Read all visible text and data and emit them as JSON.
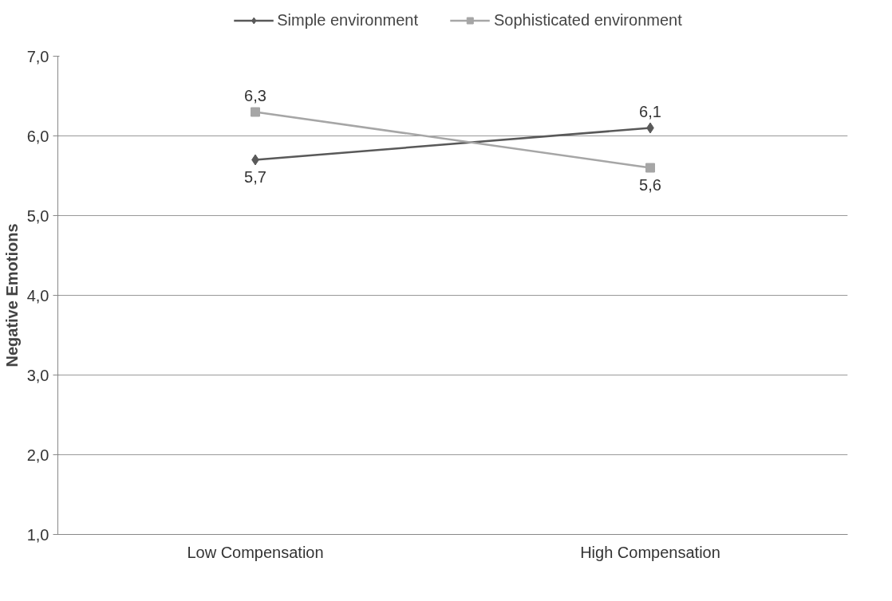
{
  "chart_data": {
    "type": "line",
    "ylabel": "Negative Emotions",
    "categories": [
      "Low Compensation",
      "High Compensation"
    ],
    "series": [
      {
        "name": "Simple environment",
        "color": "#595959",
        "marker": "diamond",
        "values": [
          5.7,
          6.1
        ],
        "value_labels": [
          "5,7",
          "6,1"
        ]
      },
      {
        "name": "Sophisticated environment",
        "color": "#a6a6a6",
        "marker": "square",
        "values": [
          6.3,
          5.6
        ],
        "value_labels": [
          "6,3",
          "5,6"
        ]
      }
    ],
    "ylim": [
      1,
      7
    ],
    "yticks": [
      {
        "value": 1,
        "label": "1,0"
      },
      {
        "value": 2,
        "label": "2,0"
      },
      {
        "value": 3,
        "label": "3,0"
      },
      {
        "value": 4,
        "label": "4,0"
      },
      {
        "value": 5,
        "label": "5,0"
      },
      {
        "value": 6,
        "label": "6,0"
      },
      {
        "value": 7,
        "label": "7,0"
      }
    ],
    "grid": "y",
    "legend": "top",
    "line_style": "solid"
  }
}
